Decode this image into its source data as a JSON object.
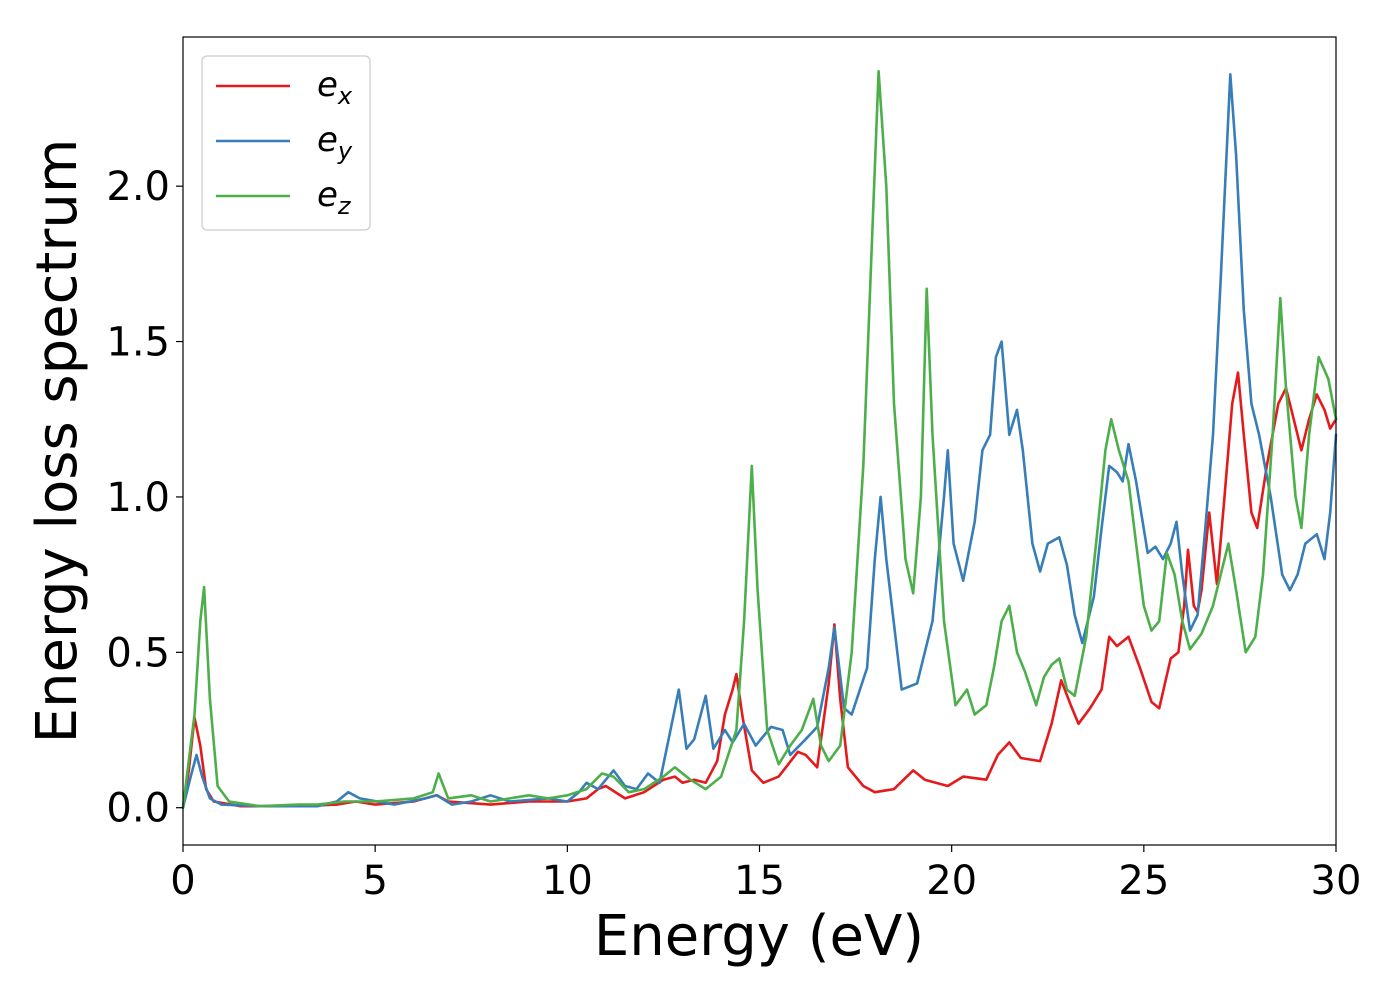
{
  "chart_data": {
    "type": "line",
    "xlabel": "Energy (eV)",
    "ylabel": "Energy loss spectrum",
    "xlim": [
      0,
      30
    ],
    "ylim": [
      -0.12,
      2.48
    ],
    "x_ticks": [
      0,
      5,
      10,
      15,
      20,
      25,
      30
    ],
    "x_tick_labels": [
      "0",
      "5",
      "10",
      "15",
      "20",
      "25",
      "30"
    ],
    "y_ticks": [
      0.0,
      0.5,
      1.0,
      1.5,
      2.0
    ],
    "y_tick_labels": [
      "0.0",
      "0.5",
      "1.0",
      "1.5",
      "2.0"
    ],
    "grid": false,
    "legend": {
      "placement": "top-left",
      "entries": [
        {
          "base": "e",
          "sub": "x",
          "color": "#e41a1c"
        },
        {
          "base": "e",
          "sub": "y",
          "color": "#377eb8"
        },
        {
          "base": "e",
          "sub": "z",
          "color": "#4daf4a"
        }
      ]
    },
    "series": [
      {
        "color": "#e41a1c",
        "points": [
          [
            0,
            0.0
          ],
          [
            0.15,
            0.12
          ],
          [
            0.3,
            0.29
          ],
          [
            0.45,
            0.2
          ],
          [
            0.6,
            0.06
          ],
          [
            0.8,
            0.02
          ],
          [
            1.5,
            0.005
          ],
          [
            3,
            0.005
          ],
          [
            4,
            0.01
          ],
          [
            4.5,
            0.02
          ],
          [
            5,
            0.01
          ],
          [
            6,
            0.02
          ],
          [
            6.6,
            0.04
          ],
          [
            6.9,
            0.02
          ],
          [
            8,
            0.01
          ],
          [
            9,
            0.02
          ],
          [
            10,
            0.02
          ],
          [
            10.5,
            0.03
          ],
          [
            10.8,
            0.06
          ],
          [
            11,
            0.07
          ],
          [
            11.5,
            0.03
          ],
          [
            12,
            0.05
          ],
          [
            12.5,
            0.09
          ],
          [
            12.8,
            0.1
          ],
          [
            13,
            0.08
          ],
          [
            13.3,
            0.09
          ],
          [
            13.6,
            0.08
          ],
          [
            13.9,
            0.15
          ],
          [
            14.1,
            0.3
          ],
          [
            14.3,
            0.38
          ],
          [
            14.4,
            0.43
          ],
          [
            14.55,
            0.3
          ],
          [
            14.8,
            0.12
          ],
          [
            15.1,
            0.08
          ],
          [
            15.5,
            0.1
          ],
          [
            16,
            0.18
          ],
          [
            16.2,
            0.17
          ],
          [
            16.5,
            0.13
          ],
          [
            16.8,
            0.4
          ],
          [
            16.95,
            0.59
          ],
          [
            17.1,
            0.35
          ],
          [
            17.3,
            0.13
          ],
          [
            17.7,
            0.07
          ],
          [
            18,
            0.05
          ],
          [
            18.5,
            0.06
          ],
          [
            19,
            0.12
          ],
          [
            19.3,
            0.09
          ],
          [
            19.9,
            0.07
          ],
          [
            20.3,
            0.1
          ],
          [
            20.9,
            0.09
          ],
          [
            21.2,
            0.17
          ],
          [
            21.5,
            0.21
          ],
          [
            21.8,
            0.16
          ],
          [
            22.3,
            0.15
          ],
          [
            22.6,
            0.27
          ],
          [
            22.85,
            0.41
          ],
          [
            23.1,
            0.33
          ],
          [
            23.3,
            0.27
          ],
          [
            23.6,
            0.32
          ],
          [
            23.9,
            0.38
          ],
          [
            24.1,
            0.55
          ],
          [
            24.3,
            0.52
          ],
          [
            24.6,
            0.55
          ],
          [
            24.9,
            0.45
          ],
          [
            25.2,
            0.34
          ],
          [
            25.4,
            0.32
          ],
          [
            25.7,
            0.48
          ],
          [
            25.9,
            0.5
          ],
          [
            26.05,
            0.65
          ],
          [
            26.15,
            0.83
          ],
          [
            26.3,
            0.65
          ],
          [
            26.4,
            0.63
          ],
          [
            26.5,
            0.7
          ],
          [
            26.7,
            0.95
          ],
          [
            26.9,
            0.72
          ],
          [
            27.1,
            1.0
          ],
          [
            27.3,
            1.3
          ],
          [
            27.45,
            1.4
          ],
          [
            27.6,
            1.2
          ],
          [
            27.8,
            0.95
          ],
          [
            27.95,
            0.9
          ],
          [
            28.2,
            1.1
          ],
          [
            28.5,
            1.3
          ],
          [
            28.7,
            1.35
          ],
          [
            28.9,
            1.25
          ],
          [
            29.1,
            1.15
          ],
          [
            29.3,
            1.25
          ],
          [
            29.5,
            1.33
          ],
          [
            29.7,
            1.28
          ],
          [
            29.85,
            1.22
          ],
          [
            30,
            1.25
          ]
        ]
      },
      {
        "color": "#377eb8",
        "points": [
          [
            0,
            0.0
          ],
          [
            0.2,
            0.1
          ],
          [
            0.35,
            0.17
          ],
          [
            0.5,
            0.1
          ],
          [
            0.7,
            0.03
          ],
          [
            1,
            0.01
          ],
          [
            2,
            0.005
          ],
          [
            3.5,
            0.005
          ],
          [
            4,
            0.02
          ],
          [
            4.3,
            0.05
          ],
          [
            4.6,
            0.03
          ],
          [
            5.5,
            0.01
          ],
          [
            6.3,
            0.03
          ],
          [
            6.6,
            0.04
          ],
          [
            7,
            0.01
          ],
          [
            7.5,
            0.02
          ],
          [
            8,
            0.04
          ],
          [
            8.5,
            0.02
          ],
          [
            9.5,
            0.03
          ],
          [
            10,
            0.02
          ],
          [
            10.3,
            0.05
          ],
          [
            10.5,
            0.08
          ],
          [
            10.8,
            0.06
          ],
          [
            11.2,
            0.12
          ],
          [
            11.5,
            0.07
          ],
          [
            11.8,
            0.06
          ],
          [
            12.1,
            0.11
          ],
          [
            12.4,
            0.08
          ],
          [
            12.6,
            0.2
          ],
          [
            12.9,
            0.38
          ],
          [
            13.1,
            0.19
          ],
          [
            13.3,
            0.22
          ],
          [
            13.6,
            0.36
          ],
          [
            13.8,
            0.19
          ],
          [
            14.1,
            0.25
          ],
          [
            14.3,
            0.21
          ],
          [
            14.6,
            0.27
          ],
          [
            14.9,
            0.2
          ],
          [
            15.3,
            0.26
          ],
          [
            15.6,
            0.25
          ],
          [
            15.8,
            0.17
          ],
          [
            16.2,
            0.22
          ],
          [
            16.5,
            0.26
          ],
          [
            16.8,
            0.45
          ],
          [
            16.95,
            0.58
          ],
          [
            17.2,
            0.32
          ],
          [
            17.4,
            0.3
          ],
          [
            17.8,
            0.45
          ],
          [
            18,
            0.8
          ],
          [
            18.15,
            1.0
          ],
          [
            18.3,
            0.8
          ],
          [
            18.7,
            0.38
          ],
          [
            19.1,
            0.4
          ],
          [
            19.5,
            0.6
          ],
          [
            19.8,
            1.0
          ],
          [
            19.9,
            1.15
          ],
          [
            20.05,
            0.85
          ],
          [
            20.3,
            0.73
          ],
          [
            20.6,
            0.92
          ],
          [
            20.8,
            1.15
          ],
          [
            21.0,
            1.2
          ],
          [
            21.15,
            1.45
          ],
          [
            21.3,
            1.5
          ],
          [
            21.5,
            1.2
          ],
          [
            21.7,
            1.28
          ],
          [
            21.85,
            1.15
          ],
          [
            22.1,
            0.85
          ],
          [
            22.3,
            0.76
          ],
          [
            22.5,
            0.85
          ],
          [
            22.8,
            0.87
          ],
          [
            23.0,
            0.78
          ],
          [
            23.2,
            0.62
          ],
          [
            23.4,
            0.53
          ],
          [
            23.7,
            0.68
          ],
          [
            23.9,
            0.9
          ],
          [
            24.1,
            1.1
          ],
          [
            24.3,
            1.08
          ],
          [
            24.45,
            1.05
          ],
          [
            24.6,
            1.17
          ],
          [
            24.8,
            1.05
          ],
          [
            25.1,
            0.82
          ],
          [
            25.3,
            0.84
          ],
          [
            25.5,
            0.8
          ],
          [
            25.7,
            0.85
          ],
          [
            25.85,
            0.92
          ],
          [
            26.0,
            0.75
          ],
          [
            26.2,
            0.57
          ],
          [
            26.4,
            0.62
          ],
          [
            26.6,
            0.9
          ],
          [
            26.8,
            1.2
          ],
          [
            27.0,
            1.7
          ],
          [
            27.25,
            2.36
          ],
          [
            27.4,
            2.1
          ],
          [
            27.6,
            1.6
          ],
          [
            27.8,
            1.3
          ],
          [
            28.0,
            1.2
          ],
          [
            28.3,
            1.0
          ],
          [
            28.6,
            0.75
          ],
          [
            28.8,
            0.7
          ],
          [
            29.0,
            0.75
          ],
          [
            29.2,
            0.85
          ],
          [
            29.5,
            0.88
          ],
          [
            29.7,
            0.8
          ],
          [
            29.85,
            0.95
          ],
          [
            30,
            1.2
          ]
        ]
      },
      {
        "color": "#4daf4a",
        "points": [
          [
            0,
            0.0
          ],
          [
            0.3,
            0.3
          ],
          [
            0.45,
            0.6
          ],
          [
            0.55,
            0.71
          ],
          [
            0.7,
            0.35
          ],
          [
            0.9,
            0.07
          ],
          [
            1.2,
            0.02
          ],
          [
            2,
            0.005
          ],
          [
            3,
            0.01
          ],
          [
            3.5,
            0.01
          ],
          [
            4.2,
            0.02
          ],
          [
            5,
            0.02
          ],
          [
            6,
            0.03
          ],
          [
            6.5,
            0.05
          ],
          [
            6.65,
            0.11
          ],
          [
            6.9,
            0.03
          ],
          [
            7.5,
            0.04
          ],
          [
            8,
            0.02
          ],
          [
            8.5,
            0.03
          ],
          [
            9,
            0.04
          ],
          [
            9.5,
            0.03
          ],
          [
            10,
            0.04
          ],
          [
            10.5,
            0.06
          ],
          [
            10.9,
            0.11
          ],
          [
            11.2,
            0.1
          ],
          [
            11.6,
            0.05
          ],
          [
            12,
            0.06
          ],
          [
            12.5,
            0.1
          ],
          [
            12.8,
            0.13
          ],
          [
            13.2,
            0.09
          ],
          [
            13.6,
            0.06
          ],
          [
            14.0,
            0.1
          ],
          [
            14.4,
            0.25
          ],
          [
            14.6,
            0.6
          ],
          [
            14.8,
            1.1
          ],
          [
            14.95,
            0.7
          ],
          [
            15.2,
            0.25
          ],
          [
            15.5,
            0.14
          ],
          [
            15.8,
            0.2
          ],
          [
            16.1,
            0.25
          ],
          [
            16.4,
            0.35
          ],
          [
            16.6,
            0.2
          ],
          [
            16.8,
            0.15
          ],
          [
            17.1,
            0.2
          ],
          [
            17.4,
            0.5
          ],
          [
            17.7,
            1.1
          ],
          [
            17.95,
            1.9
          ],
          [
            18.1,
            2.37
          ],
          [
            18.3,
            2.0
          ],
          [
            18.5,
            1.3
          ],
          [
            18.8,
            0.8
          ],
          [
            19.0,
            0.69
          ],
          [
            19.2,
            1.0
          ],
          [
            19.35,
            1.67
          ],
          [
            19.5,
            1.2
          ],
          [
            19.8,
            0.6
          ],
          [
            20.1,
            0.33
          ],
          [
            20.4,
            0.38
          ],
          [
            20.6,
            0.3
          ],
          [
            20.9,
            0.33
          ],
          [
            21.1,
            0.45
          ],
          [
            21.3,
            0.6
          ],
          [
            21.5,
            0.65
          ],
          [
            21.7,
            0.5
          ],
          [
            21.9,
            0.44
          ],
          [
            22.2,
            0.33
          ],
          [
            22.4,
            0.42
          ],
          [
            22.6,
            0.46
          ],
          [
            22.8,
            0.48
          ],
          [
            23.0,
            0.38
          ],
          [
            23.2,
            0.36
          ],
          [
            23.5,
            0.55
          ],
          [
            23.8,
            0.9
          ],
          [
            24.0,
            1.15
          ],
          [
            24.15,
            1.25
          ],
          [
            24.35,
            1.15
          ],
          [
            24.6,
            1.05
          ],
          [
            24.8,
            0.85
          ],
          [
            25.0,
            0.65
          ],
          [
            25.2,
            0.57
          ],
          [
            25.4,
            0.6
          ],
          [
            25.6,
            0.82
          ],
          [
            25.8,
            0.75
          ],
          [
            26.0,
            0.6
          ],
          [
            26.2,
            0.51
          ],
          [
            26.5,
            0.56
          ],
          [
            26.8,
            0.65
          ],
          [
            27.0,
            0.75
          ],
          [
            27.2,
            0.85
          ],
          [
            27.4,
            0.7
          ],
          [
            27.65,
            0.5
          ],
          [
            27.9,
            0.55
          ],
          [
            28.1,
            0.75
          ],
          [
            28.35,
            1.2
          ],
          [
            28.55,
            1.64
          ],
          [
            28.7,
            1.35
          ],
          [
            28.95,
            1.0
          ],
          [
            29.1,
            0.9
          ],
          [
            29.3,
            1.2
          ],
          [
            29.55,
            1.45
          ],
          [
            29.8,
            1.38
          ],
          [
            30,
            1.25
          ]
        ]
      }
    ]
  }
}
